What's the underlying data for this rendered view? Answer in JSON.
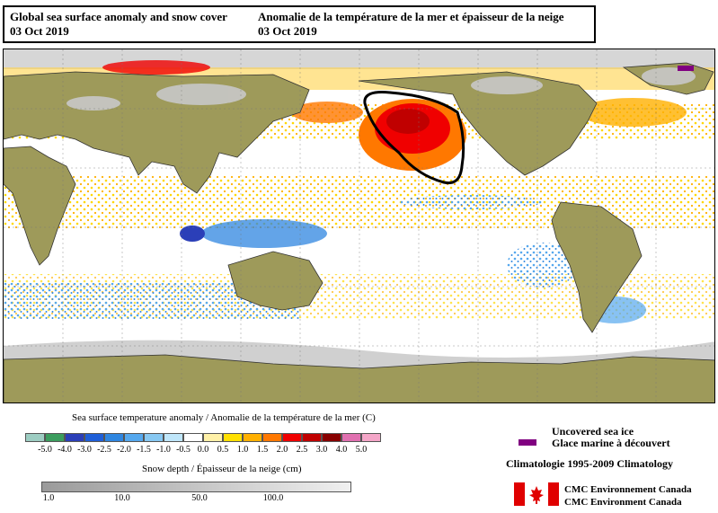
{
  "title": {
    "left_line1": "Global sea surface anomaly and snow cover",
    "left_line2": "03 Oct 2019",
    "right_line1": "Anomalie de la température de la mer et épaisseur de la neige",
    "right_line2": "03 Oct 2019"
  },
  "legend": {
    "sst_label": "Sea surface temperature anomaly / Anomalie de la température de la mer (C)",
    "sst_ticks": [
      "-5.0",
      "-4.0",
      "-3.0",
      "-2.5",
      "-2.0",
      "-1.5",
      "-1.0",
      "-0.5",
      "0.0",
      "0.5",
      "1.0",
      "1.5",
      "2.0",
      "2.5",
      "3.0",
      "4.0",
      "5.0"
    ],
    "sst_colors": [
      "#9dcdc2",
      "#3c9d5e",
      "#2b3fb8",
      "#1f5fd8",
      "#2f86e0",
      "#55a8ee",
      "#87c8f2",
      "#bfe6fa",
      "#ffffff",
      "#fff1a8",
      "#ffe000",
      "#ffb000",
      "#ff7800",
      "#f00000",
      "#c00000",
      "#880000",
      "#e070b0",
      "#f4a6c8"
    ],
    "snow_label": "Snow depth / Épaisseur de la neige (cm)",
    "snow_ticks": [
      "1.0",
      "10.0",
      "50.0",
      "100.0"
    ],
    "ice_line1": "Uncovered sea ice",
    "ice_line2": "Glace marine à découvert",
    "ice_color": "#800080",
    "climatology": "Climatologie 1995-2009 Climatology",
    "agency_fr": "CMC Environnement Canada",
    "agency_en": "CMC Environment Canada"
  }
}
